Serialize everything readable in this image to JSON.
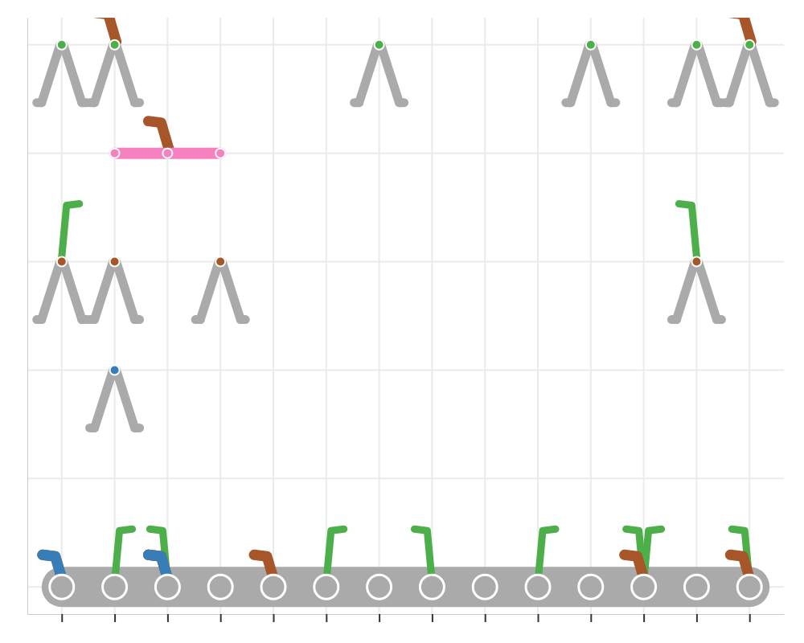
{
  "chart_data": {
    "type": "scatter",
    "xlim": [
      0.35,
      14.65
    ],
    "ylim": [
      -0.25,
      5.25
    ],
    "xticks": [
      1,
      2,
      3,
      4,
      5,
      6,
      7,
      8,
      9,
      10,
      11,
      12,
      13,
      14
    ],
    "yticks": [
      0,
      1,
      2,
      3,
      4,
      5
    ],
    "grid": true,
    "tick_labels": false,
    "series": [
      {
        "type": "line",
        "marker": "base",
        "color": "#aaaaaa",
        "x": [
          1,
          2,
          3,
          4,
          5,
          6,
          7,
          8,
          9,
          10,
          11,
          12,
          13,
          14
        ],
        "values": [
          0,
          0,
          0,
          0,
          0,
          0,
          0,
          0,
          0,
          0,
          0,
          0,
          0,
          0
        ]
      },
      {
        "marker": "stand",
        "color": "#4daf4a",
        "x": [
          1,
          2,
          7,
          11,
          13,
          14
        ],
        "values": [
          5,
          5,
          5,
          5,
          5,
          5
        ]
      },
      {
        "type": "line",
        "marker": "circle",
        "color": "#f781bf",
        "x": [
          2,
          3,
          4
        ],
        "values": [
          4,
          4,
          4
        ]
      },
      {
        "marker": "stand",
        "color": "#a65628",
        "x": [
          1,
          2,
          4,
          13
        ],
        "values": [
          3,
          3,
          3,
          3
        ]
      },
      {
        "marker": "stand",
        "color": "#377eb8",
        "x": [
          2
        ],
        "values": [
          2
        ]
      },
      {
        "marker": "sprout",
        "color": "#4daf4a",
        "x": [
          2,
          3,
          6,
          8,
          10,
          12,
          12,
          14,
          1,
          13
        ],
        "values": [
          0,
          0,
          0,
          0,
          0,
          0,
          0,
          0,
          3,
          3
        ]
      },
      {
        "marker": "leaf",
        "color": "#a65628",
        "x": [
          1,
          3,
          3,
          5,
          12,
          14,
          2,
          14,
          3
        ],
        "values": [
          0,
          0,
          0,
          0,
          0,
          0,
          5,
          5,
          4
        ]
      },
      {
        "marker": "leaf",
        "color": "#377eb8",
        "x": [
          1,
          3
        ],
        "values": [
          0,
          0
        ]
      }
    ]
  }
}
